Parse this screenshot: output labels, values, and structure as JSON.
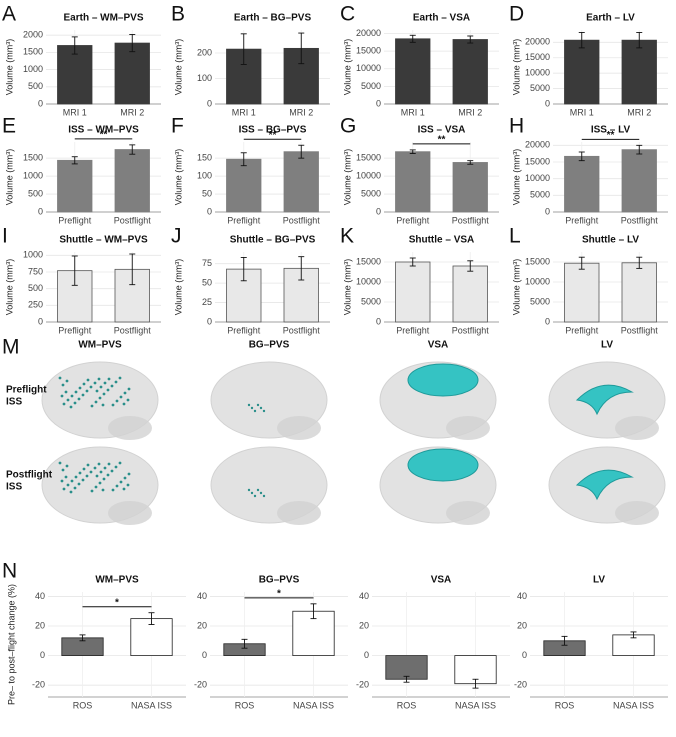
{
  "chart_data": [
    {
      "type": "bar",
      "panel": "A",
      "title": "Earth – WM–PVS",
      "ylabel": "Volume (mm³)",
      "categories": [
        "MRI 1",
        "MRI 2"
      ],
      "values": [
        1700,
        1770
      ],
      "errors": [
        250,
        250
      ],
      "colors": [
        "#3a3a3a",
        "#3a3a3a"
      ],
      "edge_color": "#3a3a3a",
      "ylim": [
        0,
        2150
      ],
      "yticks": [
        0,
        500,
        1000,
        1500,
        2000
      ],
      "grid": true
    },
    {
      "type": "bar",
      "panel": "B",
      "title": "Earth – BG–PVS",
      "ylabel": "Volume (mm³)",
      "categories": [
        "MRI 1",
        "MRI 2"
      ],
      "values": [
        215,
        218
      ],
      "errors": [
        60,
        60
      ],
      "colors": [
        "#3a3a3a",
        "#3a3a3a"
      ],
      "edge_color": "#3a3a3a",
      "ylim": [
        0,
        290
      ],
      "yticks": [
        0,
        100,
        200
      ],
      "grid": true
    },
    {
      "type": "bar",
      "panel": "C",
      "title": "Earth – VSA",
      "ylabel": "Volume (mm³)",
      "categories": [
        "MRI 1",
        "MRI 2"
      ],
      "values": [
        18500,
        18300
      ],
      "errors": [
        1000,
        1000
      ],
      "colors": [
        "#3a3a3a",
        "#3a3a3a"
      ],
      "edge_color": "#3a3a3a",
      "ylim": [
        0,
        21000
      ],
      "yticks": [
        0,
        5000,
        10000,
        15000,
        20000
      ],
      "grid": true
    },
    {
      "type": "bar",
      "panel": "D",
      "title": "Earth – LV",
      "ylabel": "Volume (mm³)",
      "categories": [
        "MRI 1",
        "MRI 2"
      ],
      "values": [
        20700,
        20700
      ],
      "errors": [
        2500,
        2500
      ],
      "colors": [
        "#3a3a3a",
        "#3a3a3a"
      ],
      "edge_color": "#3a3a3a",
      "ylim": [
        0,
        24000
      ],
      "yticks": [
        0,
        5000,
        10000,
        15000,
        20000
      ],
      "grid": true
    },
    {
      "type": "bar",
      "panel": "E",
      "title": "ISS – WM–PVS",
      "ylabel": "Volume (mm³)",
      "categories": [
        "Preflight",
        "Postflight"
      ],
      "values": [
        1440,
        1740
      ],
      "errors": [
        100,
        130
      ],
      "colors": [
        "#7f7f7f",
        "#7f7f7f"
      ],
      "edge_color": "#7f7f7f",
      "ylim": [
        0,
        1950
      ],
      "yticks": [
        0,
        500,
        1000,
        1500
      ],
      "grid": true,
      "significance": "**"
    },
    {
      "type": "bar",
      "panel": "F",
      "title": "ISS – BG–PVS",
      "ylabel": "Volume (mm³)",
      "categories": [
        "Preflight",
        "Postflight"
      ],
      "values": [
        147,
        168
      ],
      "errors": [
        18,
        18
      ],
      "colors": [
        "#7f7f7f",
        "#7f7f7f"
      ],
      "edge_color": "#7f7f7f",
      "ylim": [
        0,
        195
      ],
      "yticks": [
        0,
        50,
        100,
        150
      ],
      "grid": true,
      "significance": "**"
    },
    {
      "type": "bar",
      "panel": "G",
      "title": "ISS – VSA",
      "ylabel": "Volume (mm³)",
      "categories": [
        "Preflight",
        "Postflight"
      ],
      "values": [
        16800,
        13800
      ],
      "errors": [
        500,
        500
      ],
      "colors": [
        "#7f7f7f",
        "#7f7f7f"
      ],
      "edge_color": "#7f7f7f",
      "ylim": [
        0,
        19500
      ],
      "yticks": [
        0,
        5000,
        10000,
        15000
      ],
      "grid": true,
      "significance": "**"
    },
    {
      "type": "bar",
      "panel": "H",
      "title": "ISS – LV",
      "ylabel": "Volume (mm³)",
      "categories": [
        "Preflight",
        "Postflight"
      ],
      "values": [
        16700,
        18700
      ],
      "errors": [
        1300,
        1300
      ],
      "colors": [
        "#7f7f7f",
        "#7f7f7f"
      ],
      "edge_color": "#7f7f7f",
      "ylim": [
        0,
        21000
      ],
      "yticks": [
        0,
        5000,
        10000,
        15000,
        20000
      ],
      "grid": true,
      "significance": "**"
    },
    {
      "type": "bar",
      "panel": "I",
      "title": "Shuttle – WM–PVS",
      "ylabel": "Volume (mm³)",
      "categories": [
        "Preflight",
        "Postflight"
      ],
      "values": [
        770,
        790
      ],
      "errors": [
        220,
        230
      ],
      "colors": [
        "#e8e8e8",
        "#e8e8e8"
      ],
      "edge_color": "#555555",
      "ylim": [
        0,
        1050
      ],
      "yticks": [
        0,
        250,
        500,
        750,
        1000
      ],
      "grid": true
    },
    {
      "type": "bar",
      "panel": "J",
      "title": "Shuttle – BG–PVS",
      "ylabel": "Volume (mm³)",
      "categories": [
        "Preflight",
        "Postflight"
      ],
      "values": [
        68,
        69
      ],
      "errors": [
        15,
        15
      ],
      "colors": [
        "#e8e8e8",
        "#e8e8e8"
      ],
      "edge_color": "#555555",
      "ylim": [
        0,
        90
      ],
      "yticks": [
        0,
        25,
        50,
        75
      ],
      "grid": true
    },
    {
      "type": "bar",
      "panel": "K",
      "title": "Shuttle – VSA",
      "ylabel": "Volume (mm³)",
      "categories": [
        "Preflight",
        "Postflight"
      ],
      "values": [
        15000,
        14000
      ],
      "errors": [
        1000,
        1300
      ],
      "colors": [
        "#e8e8e8",
        "#e8e8e8"
      ],
      "edge_color": "#555555",
      "ylim": [
        0,
        17500
      ],
      "yticks": [
        0,
        5000,
        10000,
        15000
      ],
      "grid": true
    },
    {
      "type": "bar",
      "panel": "L",
      "title": "Shuttle – LV",
      "ylabel": "Volume (mm³)",
      "categories": [
        "Preflight",
        "Postflight"
      ],
      "values": [
        14700,
        14800
      ],
      "errors": [
        1500,
        1400
      ],
      "colors": [
        "#e8e8e8",
        "#e8e8e8"
      ],
      "edge_color": "#555555",
      "ylim": [
        0,
        17500
      ],
      "yticks": [
        0,
        5000,
        10000,
        15000
      ],
      "grid": true
    },
    {
      "type": "bar",
      "panel": "N",
      "title": "WM–PVS",
      "ylabel": "Pre– to post–flight change (%)",
      "categories": [
        "ROS",
        "NASA ISS"
      ],
      "values": [
        12,
        25
      ],
      "errors": [
        2,
        4
      ],
      "colors": [
        "#6e6e6e",
        "#ffffff"
      ],
      "edge_color": "#222222",
      "ylim": [
        -28,
        43
      ],
      "yticks": [
        -20,
        0,
        20,
        40
      ],
      "grid": true,
      "significance": "*"
    },
    {
      "type": "bar",
      "title": "BG–PVS",
      "categories": [
        "ROS",
        "NASA ISS"
      ],
      "values": [
        8,
        30
      ],
      "errors": [
        3,
        5
      ],
      "colors": [
        "#6e6e6e",
        "#ffffff"
      ],
      "edge_color": "#222222",
      "ylim": [
        -28,
        43
      ],
      "yticks": [
        -20,
        0,
        20,
        40
      ],
      "grid": true,
      "significance": "*"
    },
    {
      "type": "bar",
      "title": "VSA",
      "categories": [
        "ROS",
        "NASA ISS"
      ],
      "values": [
        -16,
        -19
      ],
      "errors": [
        2,
        3
      ],
      "colors": [
        "#6e6e6e",
        "#ffffff"
      ],
      "edge_color": "#222222",
      "ylim": [
        -28,
        43
      ],
      "yticks": [
        -20,
        0,
        20,
        40
      ],
      "grid": true
    },
    {
      "type": "bar",
      "title": "LV",
      "categories": [
        "ROS",
        "NASA ISS"
      ],
      "values": [
        10,
        14
      ],
      "errors": [
        3,
        2
      ],
      "colors": [
        "#6e6e6e",
        "#ffffff"
      ],
      "edge_color": "#222222",
      "ylim": [
        -28,
        43
      ],
      "yticks": [
        -20,
        0,
        20,
        40
      ],
      "grid": true
    }
  ],
  "brain_panel": {
    "panel": "M",
    "columns": [
      "WM–PVS",
      "BG–PVS",
      "VSA",
      "LV"
    ],
    "rows": [
      [
        "Preflight",
        "ISS"
      ],
      [
        "Postflight",
        "ISS"
      ]
    ]
  }
}
